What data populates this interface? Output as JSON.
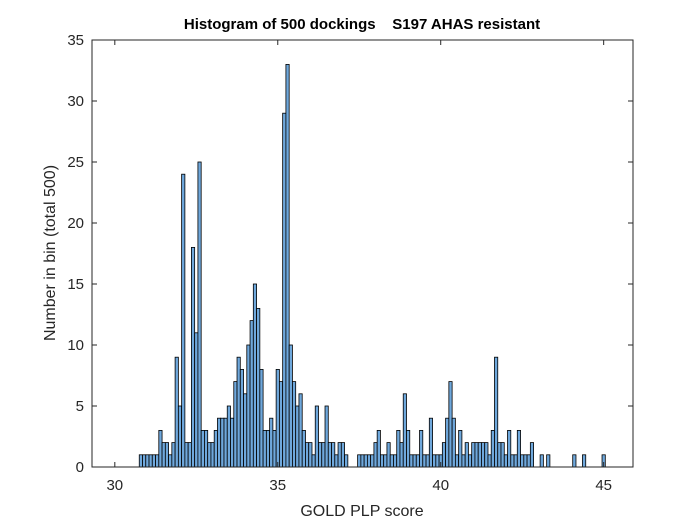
{
  "chart_data": {
    "type": "bar",
    "title": "Histogram of 500 dockings    S197 AHAS resistant",
    "xlabel": "GOLD PLP score",
    "ylabel": "Number in bin (total 500)",
    "xlim": [
      29.3,
      45.9
    ],
    "ylim": [
      0,
      35
    ],
    "xticks": [
      30,
      35,
      40,
      45
    ],
    "yticks": [
      0,
      5,
      10,
      15,
      20,
      25,
      30,
      35
    ],
    "bin_width": 0.1,
    "bar_color": "#6fa8dc",
    "edge_color": "#000000",
    "grid": false,
    "bins": [
      [
        30.8,
        1
      ],
      [
        30.9,
        1
      ],
      [
        31.0,
        1
      ],
      [
        31.1,
        1
      ],
      [
        31.2,
        1
      ],
      [
        31.3,
        1
      ],
      [
        31.4,
        3
      ],
      [
        31.5,
        2
      ],
      [
        31.6,
        2
      ],
      [
        31.7,
        1
      ],
      [
        31.8,
        2
      ],
      [
        31.9,
        9
      ],
      [
        32.0,
        5
      ],
      [
        32.1,
        24
      ],
      [
        32.2,
        2
      ],
      [
        32.3,
        2
      ],
      [
        32.4,
        18
      ],
      [
        32.5,
        11
      ],
      [
        32.6,
        25
      ],
      [
        32.7,
        3
      ],
      [
        32.8,
        3
      ],
      [
        32.9,
        2
      ],
      [
        33.0,
        2
      ],
      [
        33.1,
        3
      ],
      [
        33.2,
        4
      ],
      [
        33.3,
        4
      ],
      [
        33.4,
        4
      ],
      [
        33.5,
        5
      ],
      [
        33.6,
        4
      ],
      [
        33.7,
        7
      ],
      [
        33.8,
        9
      ],
      [
        33.9,
        8
      ],
      [
        34.0,
        6
      ],
      [
        34.1,
        10
      ],
      [
        34.2,
        12
      ],
      [
        34.3,
        15
      ],
      [
        34.4,
        13
      ],
      [
        34.5,
        8
      ],
      [
        34.6,
        3
      ],
      [
        34.7,
        3
      ],
      [
        34.8,
        4
      ],
      [
        34.9,
        3
      ],
      [
        35.0,
        8
      ],
      [
        35.1,
        7
      ],
      [
        35.2,
        29
      ],
      [
        35.3,
        33
      ],
      [
        35.4,
        10
      ],
      [
        35.5,
        7
      ],
      [
        35.6,
        5
      ],
      [
        35.7,
        6
      ],
      [
        35.8,
        3
      ],
      [
        35.9,
        2
      ],
      [
        36.0,
        2
      ],
      [
        36.1,
        1
      ],
      [
        36.2,
        5
      ],
      [
        36.3,
        2
      ],
      [
        36.4,
        2
      ],
      [
        36.5,
        5
      ],
      [
        36.6,
        2
      ],
      [
        36.7,
        2
      ],
      [
        36.8,
        1
      ],
      [
        36.9,
        2
      ],
      [
        37.0,
        2
      ],
      [
        37.1,
        1
      ],
      [
        37.5,
        1
      ],
      [
        37.6,
        1
      ],
      [
        37.7,
        1
      ],
      [
        37.8,
        1
      ],
      [
        37.9,
        1
      ],
      [
        38.0,
        2
      ],
      [
        38.1,
        3
      ],
      [
        38.2,
        1
      ],
      [
        38.3,
        1
      ],
      [
        38.4,
        2
      ],
      [
        38.5,
        1
      ],
      [
        38.6,
        1
      ],
      [
        38.7,
        3
      ],
      [
        38.8,
        2
      ],
      [
        38.9,
        6
      ],
      [
        39.0,
        3
      ],
      [
        39.1,
        1
      ],
      [
        39.2,
        1
      ],
      [
        39.3,
        1
      ],
      [
        39.4,
        3
      ],
      [
        39.5,
        1
      ],
      [
        39.6,
        1
      ],
      [
        39.7,
        4
      ],
      [
        39.8,
        1
      ],
      [
        39.9,
        1
      ],
      [
        40.0,
        1
      ],
      [
        40.1,
        2
      ],
      [
        40.2,
        4
      ],
      [
        40.3,
        7
      ],
      [
        40.4,
        4
      ],
      [
        40.5,
        1
      ],
      [
        40.6,
        3
      ],
      [
        40.7,
        1
      ],
      [
        40.8,
        2
      ],
      [
        40.9,
        1
      ],
      [
        41.0,
        2
      ],
      [
        41.1,
        2
      ],
      [
        41.2,
        2
      ],
      [
        41.3,
        2
      ],
      [
        41.4,
        2
      ],
      [
        41.5,
        1
      ],
      [
        41.6,
        3
      ],
      [
        41.7,
        9
      ],
      [
        41.8,
        2
      ],
      [
        41.9,
        2
      ],
      [
        42.0,
        1
      ],
      [
        42.1,
        3
      ],
      [
        42.2,
        1
      ],
      [
        42.3,
        1
      ],
      [
        42.4,
        3
      ],
      [
        42.5,
        1
      ],
      [
        42.6,
        1
      ],
      [
        42.7,
        1
      ],
      [
        42.8,
        2
      ],
      [
        43.1,
        1
      ],
      [
        43.3,
        1
      ],
      [
        44.1,
        1
      ],
      [
        44.4,
        1
      ],
      [
        45.0,
        1
      ]
    ]
  }
}
